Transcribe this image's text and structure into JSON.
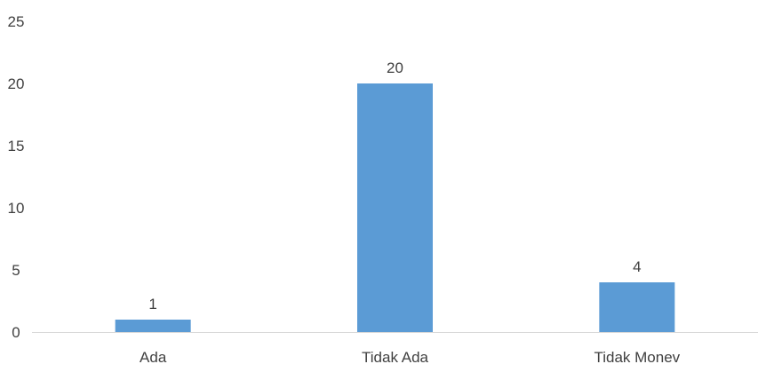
{
  "chart_data": {
    "type": "bar",
    "categories": [
      "Ada",
      "Tidak Ada",
      "Tidak Monev"
    ],
    "values": [
      1,
      20,
      4
    ],
    "data_labels": [
      "1",
      "20",
      "4"
    ],
    "y_ticks": [
      "0",
      "5",
      "10",
      "15",
      "20",
      "25"
    ],
    "ylim": [
      0,
      25
    ],
    "title": "",
    "xlabel": "",
    "ylabel": "",
    "grid": false,
    "legend": "none",
    "colors": {
      "bar": "#5b9bd5",
      "axis_line": "#d9d9d9",
      "text": "#404040"
    }
  }
}
